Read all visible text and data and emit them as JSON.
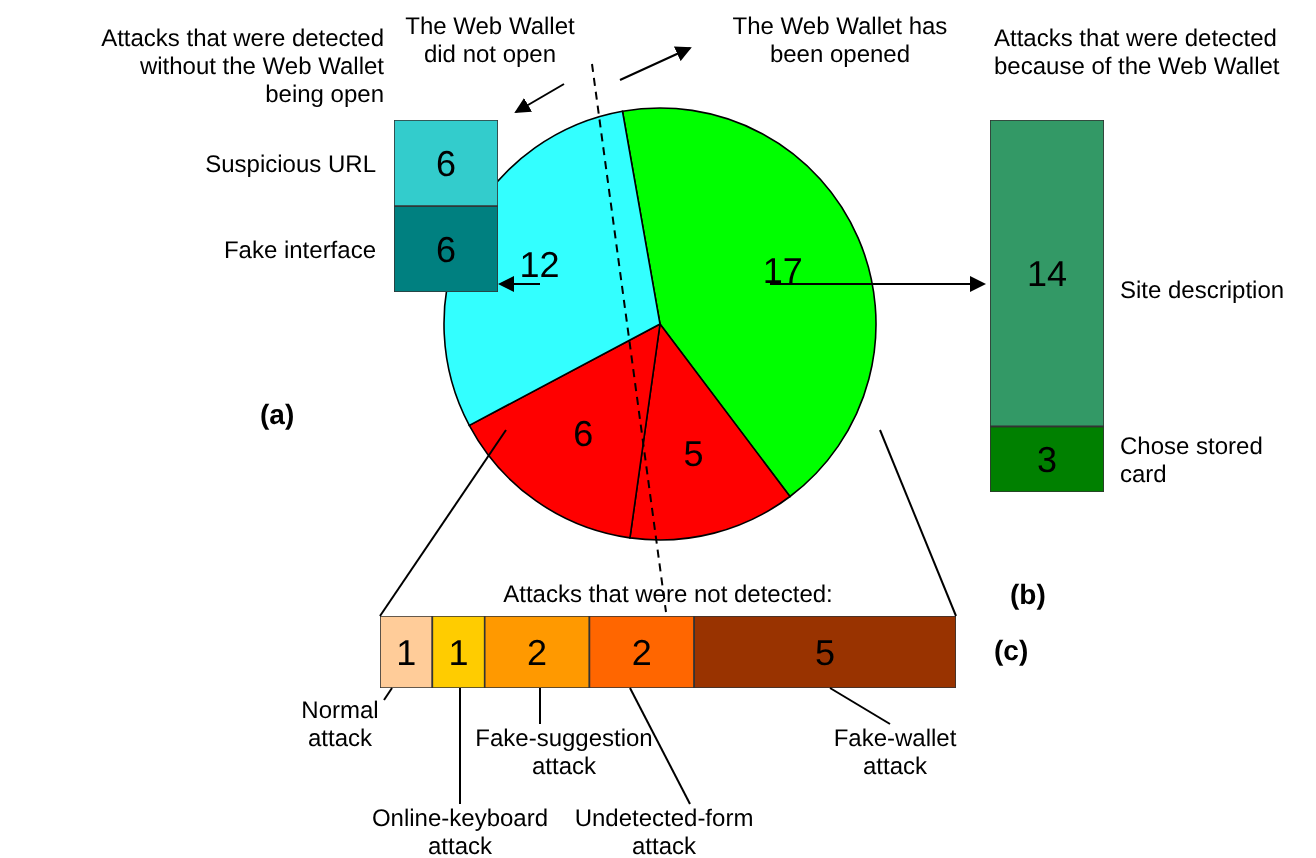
{
  "chart_data": [
    {
      "type": "pie",
      "categories": [
        null,
        null,
        null,
        null
      ],
      "values": [
        17,
        5,
        6,
        12
      ],
      "colors": [
        "#00ff00",
        "#ff0000",
        "#ff0000",
        "#33ffff"
      ],
      "data_labels": true,
      "annotations": [
        "The Web Wallet did not open",
        "The Web Wallet has been opened"
      ]
    },
    {
      "type": "bar",
      "title": "Attacks that were detected without the Web Wallet being open",
      "categories": [
        null
      ],
      "stacked": true,
      "data_labels": true,
      "annotations": [
        "(a)"
      ],
      "series": [
        {
          "name": "Fake interface",
          "color": "#008080",
          "values": [
            6
          ]
        },
        {
          "name": "Suspicious URL",
          "color": "#33cccc",
          "values": [
            6
          ]
        }
      ]
    },
    {
      "type": "bar",
      "title": "Attacks that were detected because of the Web Wallet",
      "categories": [
        null
      ],
      "stacked": true,
      "data_labels": true,
      "annotations": [
        "(b)"
      ],
      "series": [
        {
          "name": "Chose stored card",
          "color": "#008000",
          "values": [
            3
          ]
        },
        {
          "name": "Site description",
          "color": "#339966",
          "values": [
            14
          ]
        }
      ]
    },
    {
      "type": "bar",
      "title": "Attacks that were not detected:",
      "categories": [
        null
      ],
      "stacked": true,
      "orientation": "horizontal",
      "data_labels": true,
      "annotations": [
        "(c)"
      ],
      "series": [
        {
          "name": "Normal attack",
          "color": "#ffcc99",
          "values": [
            1
          ]
        },
        {
          "name": "Online-keyboard attack",
          "color": "#ffcc00",
          "values": [
            1
          ]
        },
        {
          "name": "Fake-suggestion attack",
          "color": "#ff9900",
          "values": [
            2
          ]
        },
        {
          "name": "Undetected-form attack",
          "color": "#ff6600",
          "values": [
            2
          ]
        },
        {
          "name": "Fake-wallet attack",
          "color": "#993300",
          "values": [
            5
          ]
        }
      ]
    }
  ]
}
